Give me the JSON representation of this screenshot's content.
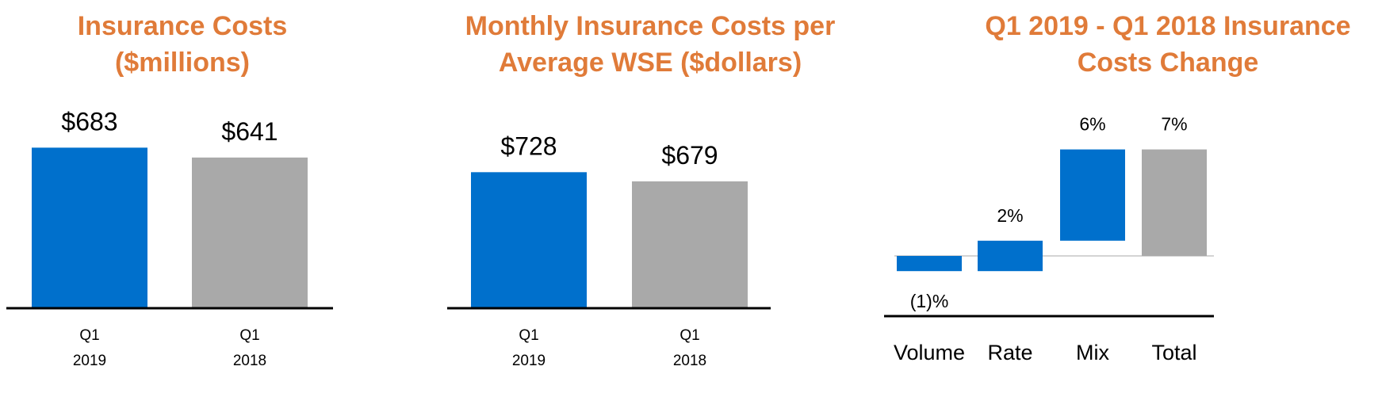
{
  "colors": {
    "title": "#e07b39",
    "blue": "#0070cc",
    "gray": "#a9a9a9",
    "axis": "#000000",
    "baseline": "#a9a9a9"
  },
  "chart_data": [
    {
      "type": "bar",
      "title": "Insurance Costs ($millions)",
      "title_lines": [
        "Insurance Costs",
        "($millions)"
      ],
      "categories": [
        "Q1 2019",
        "Q1 2018"
      ],
      "category_lines": [
        [
          "Q1",
          "2019"
        ],
        [
          "Q1",
          "2018"
        ]
      ],
      "values": [
        683,
        641
      ],
      "value_labels": [
        "$683",
        "$641"
      ],
      "bar_colors": [
        "#0070cc",
        "#a9a9a9"
      ],
      "ylim": [
        0,
        755
      ],
      "grid": false,
      "legend": "none"
    },
    {
      "type": "bar",
      "title": "Monthly Insurance Costs per Average WSE ($dollars)",
      "title_lines": [
        "Monthly Insurance Costs per",
        "Average WSE ($dollars)"
      ],
      "categories": [
        "Q1 2019",
        "Q1 2018"
      ],
      "category_lines": [
        [
          "Q1",
          "2019"
        ],
        [
          "Q1",
          "2018"
        ]
      ],
      "values": [
        728,
        679
      ],
      "value_labels": [
        "$728",
        "$679"
      ],
      "bar_colors": [
        "#0070cc",
        "#a9a9a9"
      ],
      "ylim": [
        0,
        899
      ],
      "grid": false,
      "legend": "none"
    },
    {
      "type": "waterfall",
      "title": "Q1 2019 - Q1 2018 Insurance Costs Change",
      "title_lines": [
        "Q1 2019 - Q1 2018 Insurance",
        "Costs Change"
      ],
      "categories": [
        "Volume",
        "Rate",
        "Mix",
        "Total"
      ],
      "values": [
        -1,
        2,
        6,
        7
      ],
      "value_labels": [
        "(1)%",
        "2%",
        "6%",
        "7%"
      ],
      "bar_colors": [
        "#0070cc",
        "#0070cc",
        "#0070cc",
        "#a9a9a9"
      ],
      "ylim": [
        -4,
        9
      ],
      "grid": false,
      "legend": "none"
    }
  ]
}
